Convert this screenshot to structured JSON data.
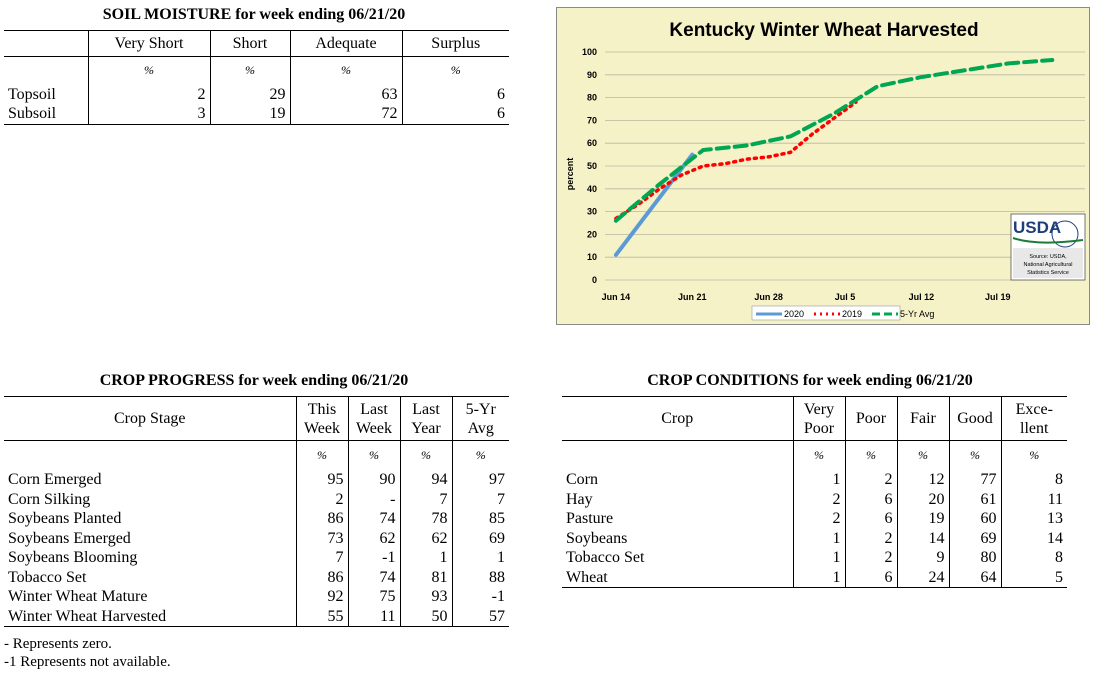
{
  "soil_moisture": {
    "title": "SOIL MOISTURE for week ending 06/21/20",
    "headers": [
      "Very Short",
      "Short",
      "Adequate",
      "Surplus"
    ],
    "unit": "%",
    "rows": [
      {
        "label": "Topsoil",
        "values": [
          "2",
          "29",
          "63",
          "6"
        ]
      },
      {
        "label": "Subsoil",
        "values": [
          "3",
          "19",
          "72",
          "6"
        ]
      }
    ]
  },
  "crop_progress": {
    "title": "CROP PROGRESS for week ending 06/21/20",
    "stage_header": "Crop Stage",
    "headers": [
      [
        "This",
        "Week"
      ],
      [
        "Last",
        "Week"
      ],
      [
        "Last",
        "Year"
      ],
      [
        "5-Yr",
        "Avg"
      ]
    ],
    "unit": "%",
    "rows": [
      {
        "label": "Corn Emerged",
        "values": [
          "95",
          "90",
          "94",
          "97"
        ]
      },
      {
        "label": "Corn Silking",
        "values": [
          "2",
          "-",
          "7",
          "7"
        ]
      },
      {
        "label": "Soybeans Planted",
        "values": [
          "86",
          "74",
          "78",
          "85"
        ]
      },
      {
        "label": "Soybeans Emerged",
        "values": [
          "73",
          "62",
          "62",
          "69"
        ]
      },
      {
        "label": "Soybeans Blooming",
        "values": [
          "7",
          "-1",
          "1",
          "1"
        ]
      },
      {
        "label": "Tobacco Set",
        "values": [
          "86",
          "74",
          "81",
          "88"
        ]
      },
      {
        "label": "Winter Wheat Mature",
        "values": [
          "92",
          "75",
          "93",
          "-1"
        ]
      },
      {
        "label": "Winter Wheat Harvested",
        "values": [
          "55",
          "11",
          "50",
          "57"
        ]
      }
    ],
    "footnotes": [
      "- Represents zero.",
      "-1 Represents not available."
    ]
  },
  "crop_conditions": {
    "title": "CROP CONDITIONS for week ending 06/21/20",
    "crop_header": "Crop",
    "headers": [
      [
        "Very",
        "Poor"
      ],
      [
        "Poor"
      ],
      [
        "Fair"
      ],
      [
        "Good"
      ],
      [
        "Exce-",
        "llent"
      ]
    ],
    "unit": "%",
    "rows": [
      {
        "label": "Corn",
        "values": [
          "1",
          "2",
          "12",
          "77",
          "8"
        ]
      },
      {
        "label": "Hay",
        "values": [
          "2",
          "6",
          "20",
          "61",
          "11"
        ]
      },
      {
        "label": "Pasture",
        "values": [
          "2",
          "6",
          "19",
          "60",
          "13"
        ]
      },
      {
        "label": "Soybeans",
        "values": [
          "1",
          "2",
          "14",
          "69",
          "14"
        ]
      },
      {
        "label": "Tobacco Set",
        "values": [
          "1",
          "2",
          "9",
          "80",
          "8"
        ]
      },
      {
        "label": "Wheat",
        "values": [
          "1",
          "6",
          "24",
          "64",
          "5"
        ]
      }
    ]
  },
  "chart_data": {
    "type": "line",
    "title": "Kentucky Winter Wheat Harvested",
    "ylabel": "percent",
    "ylim": [
      0,
      100
    ],
    "yticks": [
      0,
      10,
      20,
      30,
      40,
      50,
      60,
      70,
      80,
      90,
      100
    ],
    "xticks": [
      "Jun 14",
      "Jun 21",
      "Jun 28",
      "Jul 5",
      "Jul 12",
      "Jul 19"
    ],
    "grid": true,
    "legend_position": "bottom",
    "series": [
      {
        "name": "2020",
        "color": "#5b9bd5",
        "style": "solid",
        "x": [
          0,
          7
        ],
        "y": [
          11,
          55
        ]
      },
      {
        "name": "2019",
        "color": "#ff0000",
        "style": "dotted",
        "x": [
          0,
          2,
          4,
          6,
          8,
          10,
          12,
          14,
          16,
          18,
          20,
          22
        ],
        "y": [
          27,
          33,
          40,
          46,
          50,
          51,
          53,
          54,
          56,
          64,
          71,
          78
        ]
      },
      {
        "name": "5-Yr Avg",
        "color": "#00a651",
        "style": "dashed",
        "x": [
          0,
          4,
          8,
          12,
          16,
          20,
          24,
          28,
          32,
          36,
          40
        ],
        "y": [
          26,
          42,
          57,
          59,
          63,
          73,
          85,
          89,
          92,
          95,
          96.5
        ]
      }
    ],
    "logo": {
      "text": "USDA",
      "source_lines": [
        "Source: USDA,",
        "National Agricultural",
        "Statistics Service"
      ]
    },
    "colors": {
      "background": "#f5f2c8",
      "gridline": "#b8b8a0"
    }
  }
}
